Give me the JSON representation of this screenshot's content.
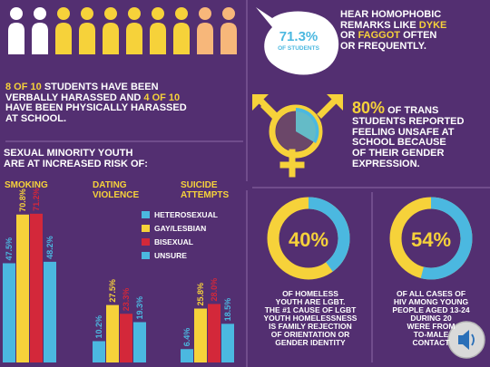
{
  "colors": {
    "background": "#5a3578",
    "yellow": "#f6d23a",
    "blue": "#4bb8e0",
    "red": "#d3283a",
    "white": "#ffffff",
    "peach": "#f7b77a"
  },
  "people": {
    "icon": "person-icon",
    "verbal_count": 8,
    "total": 10
  },
  "harassment": {
    "verbal_num": "8 of 10",
    "line1_rest": "students have been",
    "line2a": "verbally harassed and",
    "physical_num": "4 of 10",
    "line3": "have been physically harassed",
    "line4": "at school."
  },
  "homophobic": {
    "pct": "71.3%",
    "pct_sub": "of students",
    "line1": "Hear homophobic",
    "line2a": "remarks like",
    "word1": "dyke",
    "line3a": "or",
    "word2": "faggot",
    "line3b": "often",
    "line4": "or frequently."
  },
  "trans": {
    "icon": "transgender-symbol-icon",
    "pct": "80%",
    "line1": "of trans",
    "line2": "students reported",
    "line3": "feeling unsafe at",
    "line4": "school because",
    "line5": "of their gender",
    "line6": "expression."
  },
  "risk": {
    "line1": "Sexual minority youth",
    "line2": "are at increased risk of:"
  },
  "chart_data": {
    "type": "bar",
    "categories": [
      "Smoking",
      "Dating Violence",
      "Suicide Attempts"
    ],
    "category_lines": [
      [
        "Smoking"
      ],
      [
        "Dating",
        "Violence"
      ],
      [
        "Suicide",
        "Attempts"
      ]
    ],
    "series": [
      {
        "name": "Heterosexual",
        "color": "#4bb8e0",
        "values": [
          47.5,
          10.2,
          6.4
        ]
      },
      {
        "name": "Gay/Lesbian",
        "color": "#f6d23a",
        "values": [
          70.8,
          27.5,
          25.8
        ]
      },
      {
        "name": "Bisexual",
        "color": "#d3283a",
        "values": [
          71.2,
          23.3,
          28.0
        ]
      },
      {
        "name": "Unsure",
        "color": "#4bb8e0",
        "values": [
          48.2,
          19.3,
          18.5
        ]
      }
    ],
    "ylim": [
      0,
      72
    ],
    "grid": false,
    "legend": "top-right"
  },
  "homeless": {
    "pct": "40%",
    "value": 40,
    "line1": "of homeless",
    "line2": "youth are LGBT.",
    "line3": "The #1 cause of LGBT",
    "line4": "youth homelessness",
    "line5": "is family rejection",
    "line6": "of orientation or",
    "line7": "gender identity"
  },
  "hiv": {
    "pct": "54%",
    "value": 54,
    "line1": "of all cases of",
    "line2": "HIV among young",
    "line3": "people aged 13-24",
    "line4": "during 20",
    "line5": "were from",
    "line6": "to-male",
    "line7": "contact"
  },
  "speaker": {
    "icon": "speaker-icon"
  }
}
